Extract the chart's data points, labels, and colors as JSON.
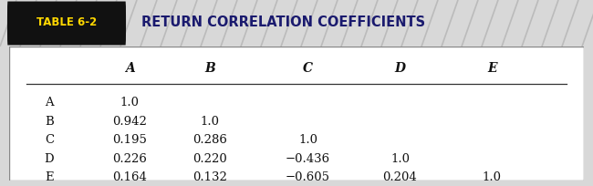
{
  "title_label": "TABLE 6-2",
  "title_text": "RETURN CORRELATION COEFFICIENTS",
  "col_headers": [
    "A",
    "B",
    "C",
    "D",
    "E"
  ],
  "row_headers": [
    "A",
    "B",
    "C",
    "D",
    "E"
  ],
  "table_data": [
    [
      "1.0",
      "",
      "",
      "",
      ""
    ],
    [
      "0.942",
      "1.0",
      "",
      "",
      ""
    ],
    [
      "0.195",
      "0.286",
      "1.0",
      "",
      ""
    ],
    [
      "0.226",
      "0.220",
      "−0.436",
      "1.0",
      ""
    ],
    [
      "0.164",
      "0.132",
      "−0.605",
      "0.204",
      "1.0"
    ]
  ],
  "header_bg": "#111111",
  "header_label_color": "#ffd700",
  "title_color": "#1a1a6e",
  "table_bg": "#ffffff",
  "figsize": [
    6.5,
    2.04
  ],
  "dpi": 100,
  "title_bar_color": "#d8d8d8",
  "hatch_color": "#bbbbbb",
  "border_color": "#888888"
}
